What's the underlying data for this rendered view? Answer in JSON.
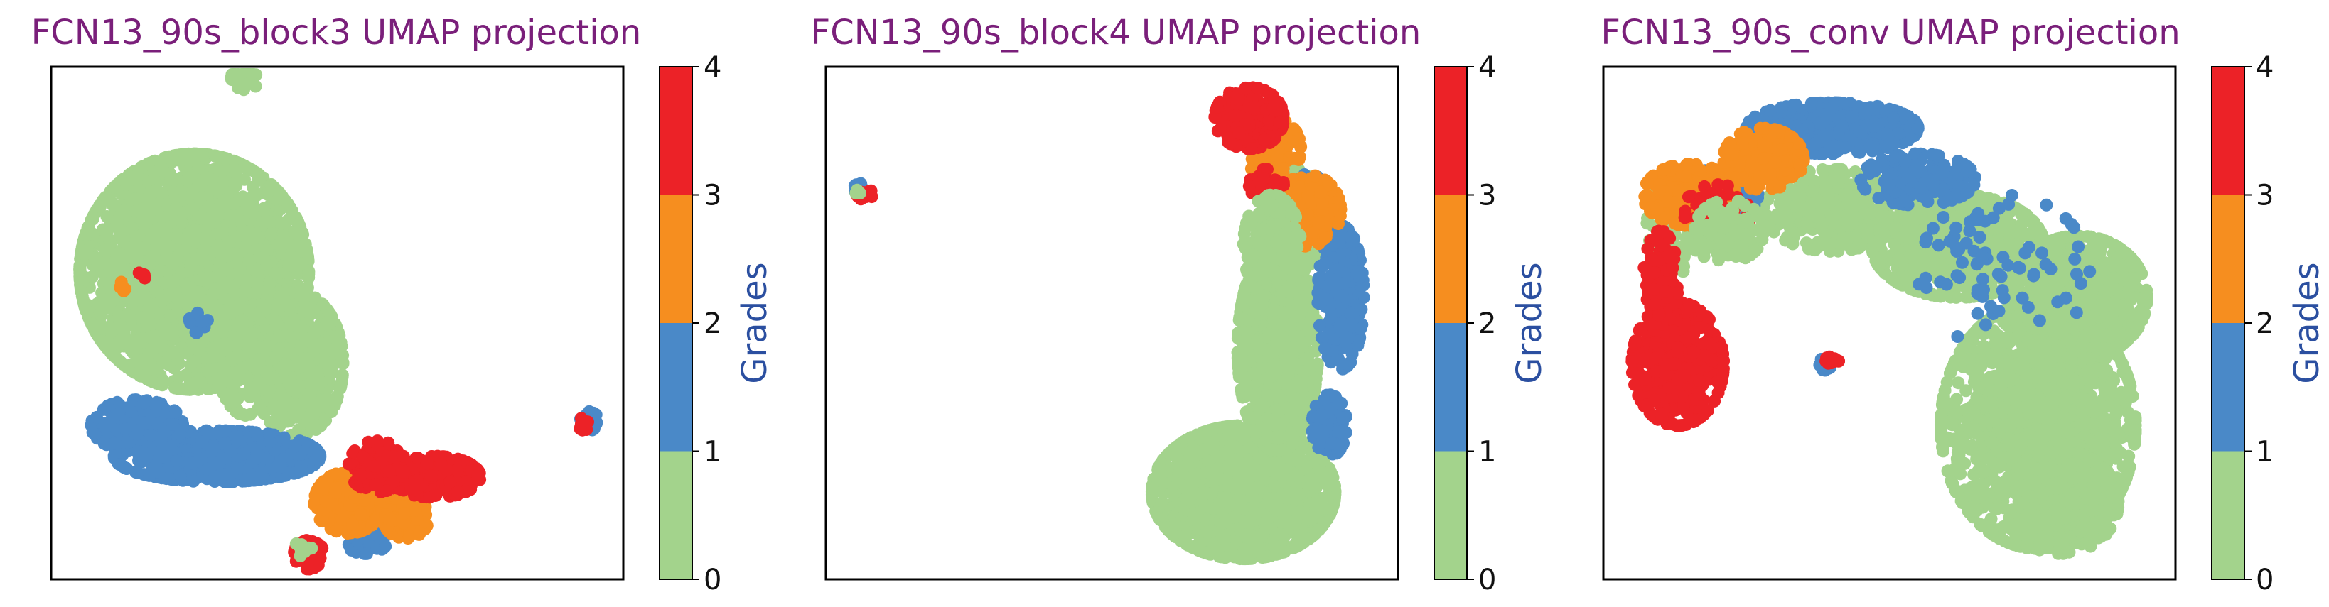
{
  "colors": {
    "grade_0_1": "#a3d38c",
    "grade_1_2": "#4a89c8",
    "grade_2_3": "#f68e1f",
    "grade_3_4": "#ec2227",
    "title": "#7a1f7a",
    "colorbar_label": "#2b4fa0"
  },
  "chart_data": [
    {
      "type": "scatter",
      "title": "FCN13_90s_block3 UMAP projection",
      "xlabel": "",
      "ylabel": "",
      "axes_ticks": "hidden",
      "colorbar": {
        "label": "Grades",
        "bins": [
          0,
          1,
          2,
          3,
          4
        ],
        "tick_labels": [
          "0",
          "1",
          "2",
          "3",
          "4"
        ]
      },
      "clusters": [
        {
          "grade_color": "grade_0_1",
          "cx": 0.25,
          "cy": 0.6,
          "rx": 0.2,
          "ry": 0.23,
          "n": 2600
        },
        {
          "grade_color": "grade_0_1",
          "cx": 0.43,
          "cy": 0.42,
          "rx": 0.08,
          "ry": 0.14,
          "n": 500
        },
        {
          "grade_color": "grade_0_1",
          "cx": 0.34,
          "cy": 0.5,
          "rx": 0.06,
          "ry": 0.18,
          "n": 300
        },
        {
          "grade_color": "grade_0_1",
          "cx": 0.34,
          "cy": 0.98,
          "rx": 0.025,
          "ry": 0.025,
          "n": 50
        },
        {
          "grade_color": "grade_1_2",
          "cx": 0.29,
          "cy": 0.24,
          "rx": 0.18,
          "ry": 0.05,
          "n": 650
        },
        {
          "grade_color": "grade_1_2",
          "cx": 0.15,
          "cy": 0.3,
          "rx": 0.08,
          "ry": 0.05,
          "n": 200
        },
        {
          "grade_color": "grade_1_2",
          "cx": 0.94,
          "cy": 0.31,
          "rx": 0.015,
          "ry": 0.02,
          "n": 60
        },
        {
          "grade_color": "grade_1_2",
          "cx": 0.26,
          "cy": 0.5,
          "rx": 0.02,
          "ry": 0.02,
          "n": 12
        },
        {
          "grade_color": "grade_1_2",
          "cx": 0.55,
          "cy": 0.08,
          "rx": 0.04,
          "ry": 0.03,
          "n": 60
        },
        {
          "grade_color": "grade_2_3",
          "cx": 0.52,
          "cy": 0.15,
          "rx": 0.06,
          "ry": 0.06,
          "n": 350
        },
        {
          "grade_color": "grade_2_3",
          "cx": 0.62,
          "cy": 0.12,
          "rx": 0.04,
          "ry": 0.04,
          "n": 150
        },
        {
          "grade_color": "grade_3_4",
          "cx": 0.67,
          "cy": 0.2,
          "rx": 0.08,
          "ry": 0.04,
          "n": 320
        },
        {
          "grade_color": "grade_3_4",
          "cx": 0.57,
          "cy": 0.22,
          "rx": 0.05,
          "ry": 0.05,
          "n": 150
        },
        {
          "grade_color": "grade_3_4",
          "cx": 0.45,
          "cy": 0.05,
          "rx": 0.025,
          "ry": 0.03,
          "n": 80
        },
        {
          "grade_color": "grade_3_4",
          "cx": 0.93,
          "cy": 0.3,
          "rx": 0.01,
          "ry": 0.015,
          "n": 10
        },
        {
          "grade_color": "grade_0_1",
          "cx": 0.44,
          "cy": 0.06,
          "rx": 0.015,
          "ry": 0.015,
          "n": 15
        },
        {
          "grade_color": "grade_2_3",
          "cx": 0.12,
          "cy": 0.57,
          "rx": 0.01,
          "ry": 0.01,
          "n": 6
        },
        {
          "grade_color": "grade_3_4",
          "cx": 0.16,
          "cy": 0.59,
          "rx": 0.01,
          "ry": 0.01,
          "n": 6
        }
      ]
    },
    {
      "type": "scatter",
      "title": "FCN13_90s_block4 UMAP projection",
      "xlabel": "",
      "ylabel": "",
      "axes_ticks": "hidden",
      "colorbar": {
        "label": "Grades",
        "bins": [
          0,
          1,
          2,
          3,
          4
        ],
        "tick_labels": [
          "0",
          "1",
          "2",
          "3",
          "4"
        ]
      },
      "clusters": [
        {
          "grade_color": "grade_0_1",
          "cx": 0.73,
          "cy": 0.17,
          "rx": 0.16,
          "ry": 0.13,
          "n": 1500
        },
        {
          "grade_color": "grade_0_1",
          "cx": 0.79,
          "cy": 0.45,
          "rx": 0.07,
          "ry": 0.2,
          "n": 1000
        },
        {
          "grade_color": "grade_0_1",
          "cx": 0.82,
          "cy": 0.7,
          "rx": 0.05,
          "ry": 0.1,
          "n": 300
        },
        {
          "grade_color": "grade_1_2",
          "cx": 0.9,
          "cy": 0.55,
          "rx": 0.04,
          "ry": 0.14,
          "n": 350
        },
        {
          "grade_color": "grade_1_2",
          "cx": 0.88,
          "cy": 0.3,
          "rx": 0.03,
          "ry": 0.06,
          "n": 120
        },
        {
          "grade_color": "grade_1_2",
          "cx": 0.84,
          "cy": 0.75,
          "rx": 0.04,
          "ry": 0.04,
          "n": 80
        },
        {
          "grade_color": "grade_2_3",
          "cx": 0.84,
          "cy": 0.72,
          "rx": 0.06,
          "ry": 0.07,
          "n": 250
        },
        {
          "grade_color": "grade_2_3",
          "cx": 0.78,
          "cy": 0.84,
          "rx": 0.05,
          "ry": 0.06,
          "n": 100
        },
        {
          "grade_color": "grade_3_4",
          "cx": 0.74,
          "cy": 0.9,
          "rx": 0.06,
          "ry": 0.06,
          "n": 320
        },
        {
          "grade_color": "grade_3_4",
          "cx": 0.77,
          "cy": 0.77,
          "rx": 0.03,
          "ry": 0.03,
          "n": 40
        },
        {
          "grade_color": "grade_0_1",
          "cx": 0.78,
          "cy": 0.65,
          "rx": 0.05,
          "ry": 0.1,
          "n": 250
        },
        {
          "grade_color": "grade_1_2",
          "cx": 0.06,
          "cy": 0.76,
          "rx": 0.012,
          "ry": 0.012,
          "n": 30
        },
        {
          "grade_color": "grade_3_4",
          "cx": 0.07,
          "cy": 0.75,
          "rx": 0.015,
          "ry": 0.01,
          "n": 25
        },
        {
          "grade_color": "grade_0_1",
          "cx": 0.055,
          "cy": 0.755,
          "rx": 0.006,
          "ry": 0.006,
          "n": 5
        }
      ]
    },
    {
      "type": "scatter",
      "title": "FCN13_90s_conv UMAP projection",
      "xlabel": "",
      "ylabel": "",
      "axes_ticks": "hidden",
      "colorbar": {
        "label": "Grades",
        "bins": [
          0,
          1,
          2,
          3,
          4
        ],
        "tick_labels": [
          "0",
          "1",
          "2",
          "3",
          "4"
        ]
      },
      "clusters": [
        {
          "grade_color": "grade_0_1",
          "cx": 0.76,
          "cy": 0.3,
          "rx": 0.17,
          "ry": 0.24,
          "n": 1600
        },
        {
          "grade_color": "grade_0_1",
          "cx": 0.83,
          "cy": 0.55,
          "rx": 0.12,
          "ry": 0.12,
          "n": 800
        },
        {
          "grade_color": "grade_0_1",
          "cx": 0.62,
          "cy": 0.65,
          "rx": 0.15,
          "ry": 0.1,
          "n": 800
        },
        {
          "grade_color": "grade_0_1",
          "cx": 0.4,
          "cy": 0.72,
          "rx": 0.12,
          "ry": 0.08,
          "n": 400
        },
        {
          "grade_color": "grade_0_1",
          "cx": 0.8,
          "cy": 0.15,
          "rx": 0.1,
          "ry": 0.1,
          "n": 350
        },
        {
          "grade_color": "grade_0_1",
          "cx": 0.15,
          "cy": 0.7,
          "rx": 0.08,
          "ry": 0.1,
          "n": 200
        },
        {
          "grade_color": "grade_1_2",
          "cx": 0.4,
          "cy": 0.88,
          "rx": 0.15,
          "ry": 0.05,
          "n": 500
        },
        {
          "grade_color": "grade_1_2",
          "cx": 0.55,
          "cy": 0.78,
          "rx": 0.1,
          "ry": 0.05,
          "n": 200
        },
        {
          "grade_color": "grade_1_2",
          "cx": 0.2,
          "cy": 0.75,
          "rx": 0.07,
          "ry": 0.05,
          "n": 120
        },
        {
          "grade_color": "grade_1_2",
          "cx": 0.39,
          "cy": 0.42,
          "rx": 0.012,
          "ry": 0.015,
          "n": 30
        },
        {
          "grade_color": "grade_1_2",
          "cx": 0.7,
          "cy": 0.6,
          "rx": 0.15,
          "ry": 0.15,
          "n": 80
        },
        {
          "grade_color": "grade_2_3",
          "cx": 0.15,
          "cy": 0.75,
          "rx": 0.08,
          "ry": 0.06,
          "n": 300
        },
        {
          "grade_color": "grade_2_3",
          "cx": 0.28,
          "cy": 0.82,
          "rx": 0.07,
          "ry": 0.06,
          "n": 250
        },
        {
          "grade_color": "grade_3_4",
          "cx": 0.13,
          "cy": 0.42,
          "rx": 0.08,
          "ry": 0.12,
          "n": 400
        },
        {
          "grade_color": "grade_3_4",
          "cx": 0.1,
          "cy": 0.58,
          "rx": 0.03,
          "ry": 0.1,
          "n": 120
        },
        {
          "grade_color": "grade_3_4",
          "cx": 0.4,
          "cy": 0.43,
          "rx": 0.012,
          "ry": 0.012,
          "n": 15
        },
        {
          "grade_color": "grade_3_4",
          "cx": 0.2,
          "cy": 0.72,
          "rx": 0.06,
          "ry": 0.05,
          "n": 60
        },
        {
          "grade_color": "grade_0_1",
          "cx": 0.22,
          "cy": 0.68,
          "rx": 0.06,
          "ry": 0.06,
          "n": 120
        }
      ]
    }
  ]
}
